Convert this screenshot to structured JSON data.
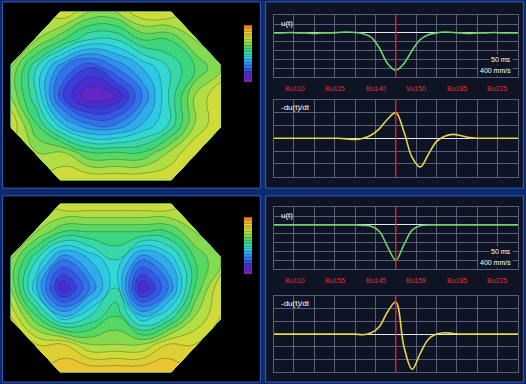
{
  "chart_data": [
    {
      "type": "contour",
      "zlim": [
        0,
        10
      ],
      "tick_labels": false,
      "z": [
        [
          null,
          null,
          8,
          8,
          8,
          8,
          8,
          null,
          null
        ],
        [
          null,
          7,
          7,
          6,
          6,
          6,
          7,
          8,
          null
        ],
        [
          8,
          6,
          4,
          3,
          3,
          4,
          5,
          7,
          8
        ],
        [
          7,
          5,
          2,
          0.5,
          1,
          3,
          5,
          7,
          8
        ],
        [
          7,
          5,
          3,
          2,
          3,
          4,
          5,
          6,
          7
        ],
        [
          null,
          7,
          6,
          5,
          5,
          6,
          6,
          7,
          null
        ],
        [
          null,
          null,
          8,
          7,
          7,
          8,
          8,
          null,
          null
        ]
      ]
    },
    {
      "type": "contour",
      "zlim": [
        0,
        10
      ],
      "tick_labels": false,
      "z": [
        [
          null,
          null,
          9,
          9,
          9,
          9,
          9,
          null,
          null
        ],
        [
          null,
          8,
          8,
          7,
          7,
          7,
          8,
          8,
          null
        ],
        [
          8,
          6,
          4,
          5,
          6,
          4,
          5,
          7,
          8
        ],
        [
          7,
          4,
          1,
          3,
          5,
          1,
          3,
          6,
          8
        ],
        [
          7,
          5,
          3,
          4,
          5,
          3,
          4,
          6,
          7
        ],
        [
          null,
          7,
          6,
          6,
          6,
          6,
          6,
          7,
          null
        ],
        [
          null,
          null,
          8,
          8,
          8,
          8,
          8,
          null,
          null
        ]
      ]
    },
    {
      "type": "line",
      "grid": true,
      "tick_labels": false,
      "x": [
        0,
        10,
        20,
        30,
        40,
        50,
        60,
        70,
        80,
        90,
        100,
        110,
        120,
        130,
        140,
        150,
        160,
        170,
        180,
        190,
        200,
        210,
        220,
        230,
        240,
        250,
        260,
        270,
        280,
        290,
        300
      ],
      "xlim": [
        0,
        300
      ],
      "xticks": [
        0,
        25,
        50,
        75,
        100,
        125,
        150,
        175,
        200,
        225,
        250,
        275,
        300
      ],
      "ylim": [
        -100,
        40
      ],
      "yticks": [
        -100,
        -80,
        -60,
        -40,
        -20,
        0,
        20,
        40
      ],
      "vline": 150,
      "annotations": [
        "50 ms",
        "400 mm/s"
      ],
      "series": [
        {
          "name": "u(t)",
          "color": "#6fd36f",
          "values": [
            0,
            0,
            1,
            0,
            0,
            -1,
            0,
            0,
            1,
            2,
            1,
            -2,
            -10,
            -35,
            -70,
            -85,
            -70,
            -40,
            -15,
            -4,
            0,
            2,
            1,
            0,
            -1,
            0,
            0,
            1,
            0,
            0,
            0
          ]
        }
      ],
      "labels_below": [
        "Bu110",
        "Bu115",
        "Bu140",
        "Vu150",
        "Bu185",
        "Bu225"
      ]
    },
    {
      "type": "line",
      "grid": true,
      "tick_labels": false,
      "x": [
        0,
        10,
        20,
        30,
        40,
        50,
        60,
        70,
        80,
        90,
        100,
        110,
        120,
        130,
        140,
        150,
        160,
        170,
        180,
        190,
        200,
        210,
        220,
        230,
        240,
        250,
        260,
        270,
        280,
        290,
        300
      ],
      "xlim": [
        0,
        300
      ],
      "xticks": [
        0,
        25,
        50,
        75,
        100,
        125,
        150,
        175,
        200,
        225,
        250,
        275,
        300
      ],
      "ylim": [
        -60,
        60
      ],
      "yticks": [
        -60,
        -40,
        -20,
        0,
        20,
        40,
        60
      ],
      "vline": 150,
      "series": [
        {
          "name": "-du(t)/dt",
          "color": "#e8d44d",
          "values": [
            0,
            0,
            0,
            0,
            0,
            0,
            0,
            0,
            0,
            -1,
            -2,
            0,
            5,
            15,
            30,
            40,
            10,
            -30,
            -45,
            -25,
            -5,
            3,
            6,
            4,
            1,
            0,
            0,
            0,
            0,
            0,
            0
          ]
        }
      ]
    },
    {
      "type": "line",
      "grid": true,
      "tick_labels": false,
      "x": [
        0,
        10,
        20,
        30,
        40,
        50,
        60,
        70,
        80,
        90,
        100,
        110,
        120,
        130,
        140,
        150,
        160,
        170,
        180,
        190,
        200,
        210,
        220,
        230,
        240,
        250,
        260,
        270,
        280,
        290,
        300
      ],
      "xlim": [
        0,
        300
      ],
      "xticks": [
        0,
        25,
        50,
        75,
        100,
        125,
        150,
        175,
        200,
        225,
        250,
        275,
        300
      ],
      "ylim": [
        -100,
        40
      ],
      "yticks": [
        -100,
        -80,
        -60,
        -40,
        -20,
        0,
        20,
        40
      ],
      "vline": 150,
      "annotations": [
        "50 ms",
        "400 mm/s"
      ],
      "series": [
        {
          "name": "u(t)",
          "color": "#6fd36f",
          "values": [
            0,
            0,
            0,
            0,
            0,
            0,
            0,
            0,
            0,
            0,
            0,
            -1,
            -3,
            -15,
            -50,
            -80,
            -45,
            -12,
            -2,
            0,
            0,
            0,
            0,
            0,
            0,
            0,
            0,
            0,
            0,
            0,
            0
          ]
        }
      ],
      "labels_below": [
        "Bu110",
        "Bu155",
        "Bu145",
        "Bu159",
        "Bu185",
        "Bu225"
      ]
    },
    {
      "type": "line",
      "grid": true,
      "tick_labels": false,
      "x": [
        0,
        10,
        20,
        30,
        40,
        50,
        60,
        70,
        80,
        90,
        100,
        110,
        120,
        130,
        140,
        150,
        160,
        170,
        180,
        190,
        200,
        210,
        220,
        230,
        240,
        250,
        260,
        270,
        280,
        290,
        300
      ],
      "xlim": [
        0,
        300
      ],
      "xticks": [
        0,
        25,
        50,
        75,
        100,
        125,
        150,
        175,
        200,
        225,
        250,
        275,
        300
      ],
      "ylim": [
        -60,
        60
      ],
      "yticks": [
        -60,
        -40,
        -20,
        0,
        20,
        40,
        60
      ],
      "vline": 150,
      "series": [
        {
          "name": "-du(t)/dt",
          "color": "#e8d44d",
          "values": [
            0,
            0,
            0,
            0,
            0,
            0,
            0,
            0,
            0,
            0,
            0,
            -1,
            2,
            12,
            35,
            50,
            -20,
            -55,
            -30,
            -8,
            0,
            2,
            1,
            0,
            0,
            0,
            0,
            0,
            0,
            0,
            0
          ]
        }
      ]
    }
  ]
}
